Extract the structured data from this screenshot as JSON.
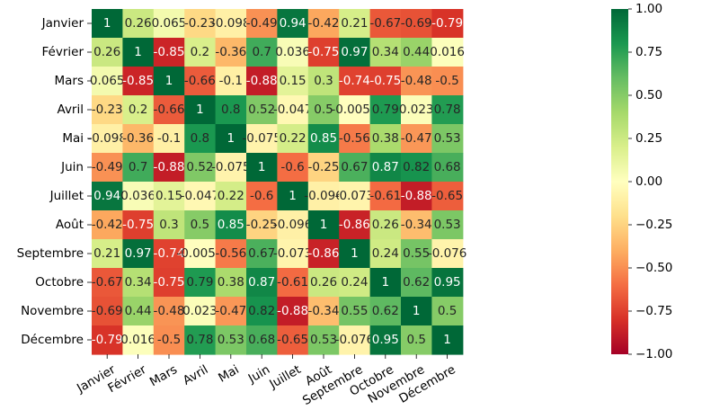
{
  "chart_data": {
    "type": "heatmap",
    "rows": [
      "Janvier",
      "Février",
      "Mars",
      "Avril",
      "Mai",
      "Juin",
      "Juillet",
      "Août",
      "Septembre",
      "Octobre",
      "Novembre",
      "Décembre"
    ],
    "columns": [
      "Janvier",
      "Février",
      "Mars",
      "Avril",
      "Mai",
      "Juin",
      "Juillet",
      "Août",
      "Septembre",
      "Octobre",
      "Novembre",
      "Décembre"
    ],
    "values": [
      [
        1,
        0.26,
        0.065,
        -0.23,
        -0.098,
        -0.49,
        0.94,
        -0.42,
        0.21,
        -0.67,
        -0.69,
        -0.79
      ],
      [
        0.26,
        1,
        -0.85,
        0.2,
        -0.36,
        0.7,
        0.036,
        -0.75,
        0.97,
        0.34,
        0.44,
        0.016
      ],
      [
        0.065,
        -0.85,
        1,
        -0.66,
        -0.1,
        -0.88,
        0.15,
        0.3,
        -0.74,
        -0.75,
        -0.48,
        -0.5
      ],
      [
        -0.23,
        0.2,
        -0.66,
        1,
        0.8,
        0.52,
        -0.047,
        0.5,
        -0.0056,
        0.79,
        0.023,
        0.78
      ],
      [
        -0.098,
        -0.36,
        -0.1,
        0.8,
        1,
        -0.075,
        0.22,
        0.85,
        -0.56,
        0.38,
        -0.47,
        0.53
      ],
      [
        -0.49,
        0.7,
        -0.88,
        0.52,
        -0.075,
        1,
        -0.6,
        -0.25,
        0.67,
        0.87,
        0.82,
        0.68
      ],
      [
        0.94,
        0.036,
        0.15,
        -0.047,
        0.22,
        -0.6,
        1,
        -0.096,
        -0.073,
        -0.61,
        -0.88,
        -0.65
      ],
      [
        -0.42,
        -0.75,
        0.3,
        0.5,
        0.85,
        -0.25,
        -0.096,
        1,
        -0.86,
        0.26,
        -0.34,
        0.53
      ],
      [
        0.21,
        0.97,
        -0.74,
        -0.0056,
        -0.56,
        0.67,
        -0.073,
        -0.86,
        1,
        0.24,
        0.55,
        -0.076
      ],
      [
        -0.67,
        0.34,
        -0.75,
        0.79,
        0.38,
        0.87,
        -0.61,
        0.26,
        0.24,
        1,
        0.62,
        0.95
      ],
      [
        -0.69,
        0.44,
        -0.48,
        0.023,
        -0.47,
        0.82,
        -0.88,
        -0.34,
        0.55,
        0.62,
        1,
        0.5
      ],
      [
        -0.79,
        0.016,
        -0.5,
        0.78,
        0.53,
        0.68,
        -0.65,
        0.53,
        -0.076,
        0.95,
        0.5,
        1
      ]
    ],
    "value_range": [
      -1,
      1
    ],
    "colormap": "RdYlGn",
    "colorbar_ticks": [
      "1.00",
      "0.75",
      "0.50",
      "0.25",
      "0.00",
      "−0.25",
      "−0.50",
      "−0.75",
      "−1.00"
    ],
    "colorbar_tick_values": [
      1,
      0.75,
      0.5,
      0.25,
      0,
      -0.25,
      -0.5,
      -0.75,
      -1
    ],
    "x_tick_rotation_deg": 30,
    "annotated": true,
    "grid": false,
    "title": "",
    "xlabel": "",
    "ylabel": ""
  }
}
